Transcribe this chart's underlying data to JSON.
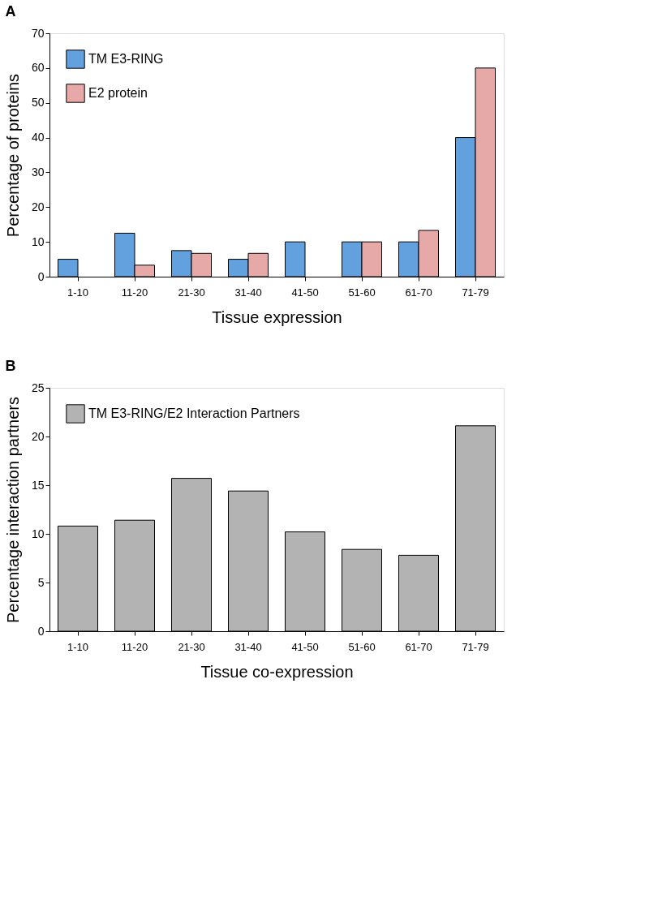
{
  "chart_data": [
    {
      "type": "bar",
      "title": "A",
      "xlabel": "Tissue expression",
      "ylabel": "Percentage of proteins",
      "categories": [
        "1-10",
        "11-20",
        "21-30",
        "31-40",
        "41-50",
        "51-60",
        "61-70",
        "71-79"
      ],
      "series": [
        {
          "name": "TM E3-RING",
          "color": "#63a0de",
          "values": [
            5,
            12.5,
            7.5,
            5,
            10,
            10,
            10,
            40
          ]
        },
        {
          "name": "E2 protein",
          "color": "#e6a9a7",
          "values": [
            null,
            3.3,
            6.7,
            6.7,
            null,
            10,
            13.3,
            60
          ]
        }
      ],
      "ylim": [
        0,
        70
      ],
      "yticks": [
        0,
        10,
        20,
        30,
        40,
        50,
        60,
        70
      ],
      "grid": false,
      "legend": "top left"
    },
    {
      "type": "bar",
      "title": "B",
      "xlabel": "Tissue co-expression",
      "ylabel": "Percentage interaction partners",
      "categories": [
        "1-10",
        "11-20",
        "21-30",
        "31-40",
        "41-50",
        "51-60",
        "61-70",
        "71-79"
      ],
      "series": [
        {
          "name": "TM E3-RING/E2 Interaction Partners",
          "color": "#b3b3b3",
          "values": [
            10.8,
            11.4,
            15.7,
            14.4,
            10.2,
            8.4,
            7.8,
            21.1
          ]
        }
      ],
      "ylim": [
        0,
        25
      ],
      "yticks": [
        0,
        5,
        10,
        15,
        20,
        25
      ],
      "grid": false,
      "legend": "top left"
    }
  ]
}
